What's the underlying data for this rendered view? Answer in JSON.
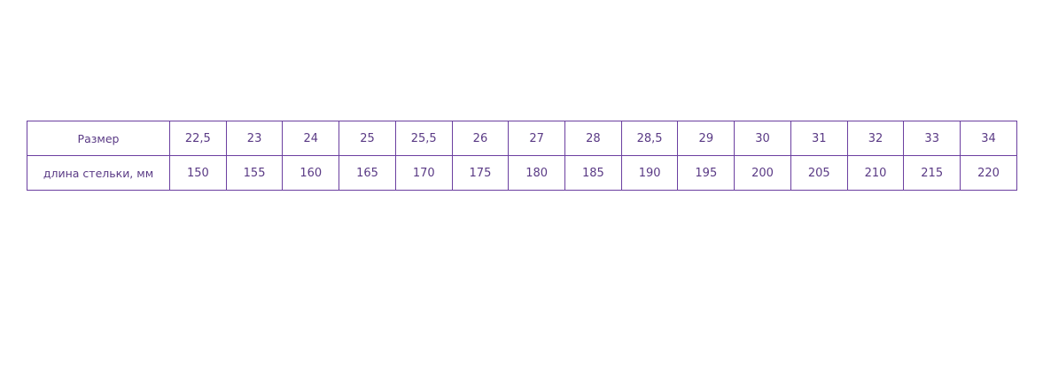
{
  "table": {
    "rows": [
      {
        "label": "Размер",
        "values": [
          "22,5",
          "23",
          "24",
          "25",
          "25,5",
          "26",
          "27",
          "28",
          "28,5",
          "29",
          "30",
          "31",
          "32",
          "33",
          "34"
        ]
      },
      {
        "label": "длина стельки, мм",
        "values": [
          "150",
          "155",
          "160",
          "165",
          "170",
          "175",
          "180",
          "185",
          "190",
          "195",
          "200",
          "205",
          "210",
          "215",
          "220"
        ]
      }
    ]
  },
  "colors": {
    "border": "#6b3fa0",
    "text": "#5a3a85"
  }
}
